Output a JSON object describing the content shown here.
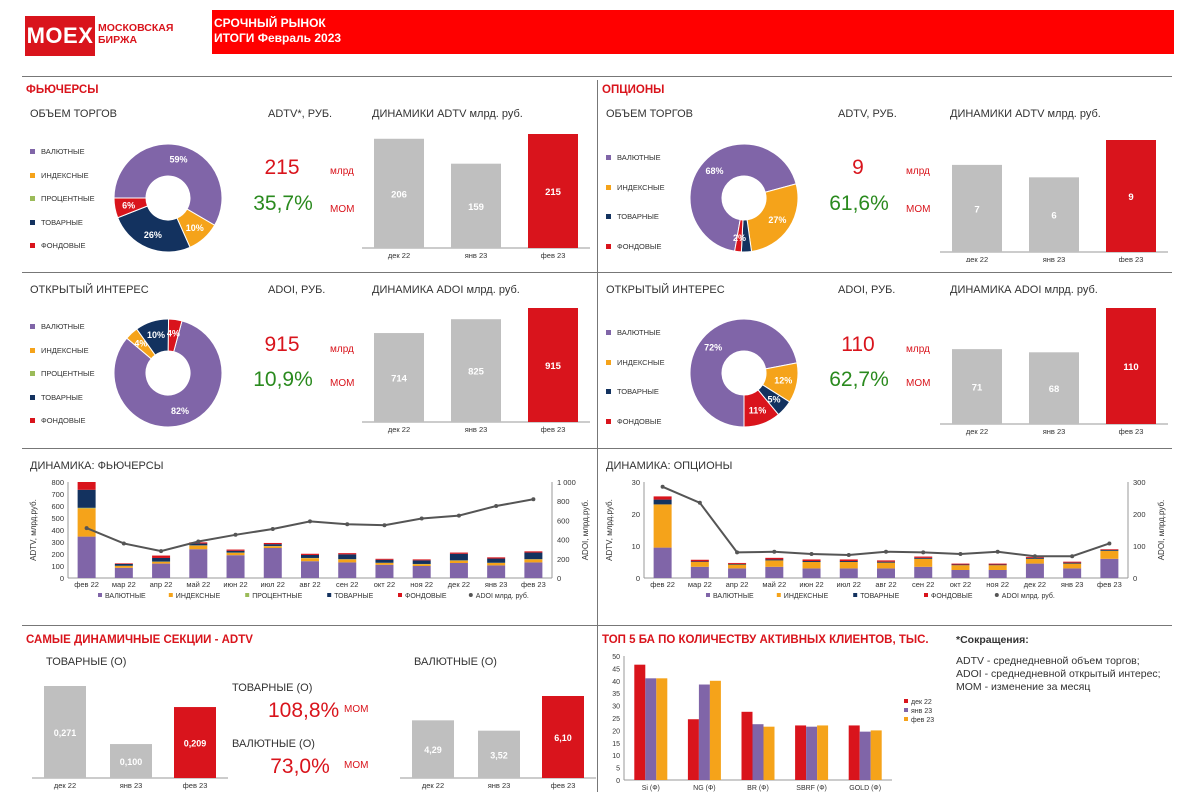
{
  "header": {
    "logo_main": "MOEX",
    "logo_sub1": "МОСКОВСКАЯ",
    "logo_sub2": "БИРЖА",
    "title_line1": "СРОЧНЫЙ РЫНОК",
    "title_line2": "ИТОГИ  Февраль 2023"
  },
  "colors": {
    "purple": "#8065a8",
    "orange": "#f5a31a",
    "green": "#9bbb59",
    "navy": "#13325f",
    "red": "#d9141c",
    "grey": "#bfbfbf",
    "kpi_green": "#2a8a1e"
  },
  "futures": {
    "section_title": "ФЬЮЧЕРСЫ",
    "volume": {
      "title": "ОБЪЕМ ТОРГОВ",
      "kpi_label": "ADTV*, РУБ.",
      "kpi_value": "215",
      "kpi_unit": "млрд",
      "kpi_change": "35,7%",
      "kpi_change_label": "МОМ",
      "dyn_title": "ДИНАМИКИ ADTV млрд. руб."
    },
    "oi": {
      "title": "ОТКРЫТЫЙ ИНТЕРЕС",
      "kpi_label": "ADOI, РУБ.",
      "kpi_value": "915",
      "kpi_unit": "млрд",
      "kpi_change": "10,9%",
      "kpi_change_label": "МОМ",
      "dyn_title": "ДИНАМИКА ADOI млрд. руб."
    },
    "legend": [
      "ВАЛЮТНЫЕ",
      "ИНДЕКСНЫЕ",
      "ПРОЦЕНТНЫЕ",
      "ТОВАРНЫЕ",
      "ФОНДОВЫЕ"
    ]
  },
  "options": {
    "section_title": "ОПЦИОНЫ",
    "volume": {
      "title": "ОБЪЕМ ТОРГОВ",
      "kpi_label": "ADTV, РУБ.",
      "kpi_value": "9",
      "kpi_unit": "млрд",
      "kpi_change": "61,6%",
      "kpi_change_label": "МОМ",
      "dyn_title": "ДИНАМИКИ ADTV млрд. руб."
    },
    "oi": {
      "title": "ОТКРЫТЫЙ ИНТЕРЕС",
      "kpi_label": "ADOI, РУБ.",
      "kpi_value": "110",
      "kpi_unit": "млрд",
      "kpi_change": "62,7%",
      "kpi_change_label": "МОМ",
      "dyn_title": "ДИНАМИКА ADOI млрд. руб."
    },
    "legend": [
      "ВАЛЮТНЫЕ",
      "ИНДЕКСНЫЕ",
      "ТОВАРНЫЕ",
      "ФОНДОВЫЕ"
    ]
  },
  "dyn_futures_title": "ДИНАМИКА: ФЬЮЧЕРСЫ",
  "dyn_options_title": "ДИНАМИКА: ОПЦИОНЫ",
  "dynamic_sections": {
    "title": "САМЫЕ ДИНАМИЧНЫЕ СЕКЦИИ - ADTV",
    "left_label": "ТОВАРНЫЕ  (О)",
    "right_label": "ВАЛЮТНЫЕ  (О)",
    "kpi1_label": "ТОВАРНЫЕ  (О)",
    "kpi1_value": "108,8%",
    "kpi1_mom": "МОМ",
    "kpi2_label": "ВАЛЮТНЫЕ  (О)",
    "kpi2_value": "73,0%",
    "kpi2_mom": "МОМ"
  },
  "top5_title": "ТОП 5 БА ПО КОЛИЧЕСТВУ АКТИВНЫХ КЛИЕНТОВ, ТЫС.",
  "abbreviations": {
    "title": "*Сокращения:",
    "line1": "ADTV - среднедневной объем торгов;",
    "line2": "ADOI - среднедневной открытый интерес;",
    "line3": "МОМ - изменение за месяц"
  },
  "chart_data": [
    {
      "id": "fut_adtv_donut",
      "type": "pie",
      "labels": [
        "ВАЛЮТНЫЕ",
        "ИНДЕКСНЫЕ",
        "ПРОЦЕНТНЫЕ",
        "ТОВАРНЫЕ",
        "ФОНДОВЫЕ"
      ],
      "values": [
        59,
        10,
        0,
        26,
        6
      ],
      "data_labels": [
        "59%",
        "10%",
        "",
        "26%",
        "6%"
      ]
    },
    {
      "id": "fut_adtv_bars",
      "type": "bar",
      "categories": [
        "дек 22",
        "янв 23",
        "фев 23"
      ],
      "values": [
        206,
        159,
        215
      ]
    },
    {
      "id": "fut_oi_donut",
      "type": "pie",
      "labels": [
        "ВАЛЮТНЫЕ",
        "ИНДЕКСНЫЕ",
        "ПРОЦЕНТНЫЕ",
        "ТОВАРНЫЕ",
        "ФОНДОВЫЕ"
      ],
      "values": [
        82,
        4,
        0,
        10,
        4
      ],
      "data_labels": [
        "82%",
        "4%",
        "",
        "10%",
        "4%"
      ]
    },
    {
      "id": "fut_oi_bars",
      "type": "bar",
      "categories": [
        "дек 22",
        "янв 23",
        "фев 23"
      ],
      "values": [
        714,
        825,
        915
      ]
    },
    {
      "id": "opt_adtv_donut",
      "type": "pie",
      "labels": [
        "ВАЛЮТНЫЕ",
        "ИНДЕКСНЫЕ",
        "ТОВАРНЫЕ",
        "ФОНДОВЫЕ"
      ],
      "values": [
        68,
        27,
        3,
        2
      ],
      "data_labels": [
        "68%",
        "27%",
        "",
        "2%"
      ]
    },
    {
      "id": "opt_adtv_bars",
      "type": "bar",
      "categories": [
        "дек 22",
        "янв 23",
        "фев 23"
      ],
      "values": [
        7,
        6,
        9
      ]
    },
    {
      "id": "opt_oi_donut",
      "type": "pie",
      "labels": [
        "ВАЛЮТНЫЕ",
        "ИНДЕКСНЫЕ",
        "ТОВАРНЫЕ",
        "ФОНДОВЫЕ"
      ],
      "values": [
        72,
        12,
        5,
        11
      ],
      "data_labels": [
        "72%",
        "12%",
        "5%",
        "11%"
      ]
    },
    {
      "id": "opt_oi_bars",
      "type": "bar",
      "categories": [
        "дек 22",
        "янв 23",
        "фев 23"
      ],
      "values": [
        71,
        68,
        110
      ]
    },
    {
      "id": "fut_dynamics",
      "type": "bar",
      "categories": [
        "фев 22",
        "мар 22",
        "апр 22",
        "май 22",
        "июн 22",
        "июл 22",
        "авг 22",
        "сен 22",
        "окт 22",
        "ноя 22",
        "дек 22",
        "янв 23",
        "фев 23"
      ],
      "series": [
        {
          "name": "ВАЛЮТНЫЕ",
          "values": [
            345,
            85,
            120,
            240,
            190,
            250,
            140,
            130,
            110,
            100,
            125,
            105,
            130
          ]
        },
        {
          "name": "ИНДЕКСНЫЕ",
          "values": [
            235,
            15,
            15,
            30,
            20,
            15,
            25,
            25,
            15,
            15,
            20,
            20,
            25
          ]
        },
        {
          "name": "ПРОЦЕНТНЫЕ",
          "values": [
            5,
            2,
            2,
            2,
            2,
            2,
            2,
            2,
            2,
            2,
            2,
            2,
            2
          ]
        },
        {
          "name": "ТОВАРНЫЕ",
          "values": [
            150,
            15,
            30,
            15,
            15,
            15,
            25,
            40,
            25,
            30,
            55,
            35,
            55
          ]
        },
        {
          "name": "ФОНДОВЫЕ",
          "values": [
            65,
            5,
            20,
            10,
            10,
            10,
            10,
            10,
            8,
            8,
            10,
            10,
            10
          ]
        }
      ],
      "line": {
        "name": "ADOI млрд. руб.",
        "values": [
          520,
          360,
          280,
          380,
          450,
          510,
          590,
          560,
          550,
          620,
          650,
          750,
          820
        ]
      },
      "ylabel": "ADTV, млрд.руб.",
      "y2label": "ADOI, млрд.руб.",
      "ylim": [
        0,
        800
      ],
      "y2lim": [
        0,
        1000
      ],
      "yticks": [
        "0",
        "100",
        "200",
        "300",
        "400",
        "500",
        "600",
        "700",
        "800"
      ],
      "y2ticks": [
        "0",
        "200",
        "400",
        "600",
        "800",
        "1 000"
      ]
    },
    {
      "id": "opt_dynamics",
      "type": "bar",
      "categories": [
        "фев 22",
        "мар 22",
        "апр 22",
        "май 22",
        "июн 22",
        "июл 22",
        "авг 22",
        "сен 22",
        "окт 22",
        "ноя 22",
        "дек 22",
        "янв 23",
        "фев 23"
      ],
      "series": [
        {
          "name": "ВАЛЮТНЫЕ",
          "values": [
            9.5,
            3.5,
            3,
            3.5,
            3,
            3,
            3,
            3.5,
            2.5,
            2.5,
            4.5,
            3,
            6
          ]
        },
        {
          "name": "ИНДЕКСНЫЕ",
          "values": [
            13.5,
            1.5,
            1.2,
            2,
            2,
            2,
            1.8,
            2.5,
            1.5,
            1.5,
            1.5,
            1.5,
            2.5
          ]
        },
        {
          "name": "ТОВАРНЫЕ",
          "values": [
            1.5,
            0.2,
            0.2,
            0.3,
            0.3,
            0.3,
            0.3,
            0.3,
            0.2,
            0.2,
            0.3,
            0.3,
            0.3
          ]
        },
        {
          "name": "ФОНДОВЫЕ",
          "values": [
            1,
            0.5,
            0.3,
            0.5,
            0.5,
            0.5,
            0.4,
            0.4,
            0.3,
            0.3,
            0.3,
            0.3,
            0.2
          ]
        }
      ],
      "line": {
        "name": "ADOI млрд. руб.",
        "values": [
          285,
          235,
          80,
          82,
          75,
          72,
          82,
          80,
          75,
          82,
          68,
          68,
          108
        ]
      },
      "ylabel": "ADTV, млрд.руб.",
      "y2label": "ADOI, млрд.руб.",
      "ylim": [
        0,
        30
      ],
      "y2lim": [
        0,
        300
      ],
      "yticks": [
        "0",
        "10",
        "20",
        "30"
      ],
      "y2ticks": [
        "0",
        "100",
        "200",
        "300"
      ]
    },
    {
      "id": "commodity_bars",
      "type": "bar",
      "categories": [
        "дек 22",
        "янв 23",
        "фев 23"
      ],
      "values": [
        0.271,
        0.1,
        0.209
      ],
      "data_labels": [
        "0,271",
        "0,100",
        "0,209"
      ]
    },
    {
      "id": "currency_bars",
      "type": "bar",
      "categories": [
        "дек 22",
        "янв 23",
        "фев 23"
      ],
      "values": [
        4.29,
        3.52,
        6.1
      ],
      "data_labels": [
        "4,29",
        "3,52",
        "6,10"
      ]
    },
    {
      "id": "top5",
      "type": "bar",
      "categories": [
        "Si (Ф)",
        "NG (Ф)",
        "BR (Ф)",
        "SBRF (Ф)",
        "GOLD (Ф)"
      ],
      "series": [
        {
          "name": "дек 22",
          "values": [
            46.5,
            24.5,
            27.5,
            22,
            22
          ]
        },
        {
          "name": "янв 23",
          "values": [
            41,
            38.5,
            22.5,
            21.5,
            19.5
          ]
        },
        {
          "name": "фев 23",
          "values": [
            41,
            40,
            21.5,
            22,
            20
          ]
        }
      ],
      "ylim": [
        0,
        50
      ],
      "yticks": [
        "0",
        "5",
        "10",
        "15",
        "20",
        "25",
        "30",
        "35",
        "40",
        "45",
        "50"
      ]
    }
  ]
}
